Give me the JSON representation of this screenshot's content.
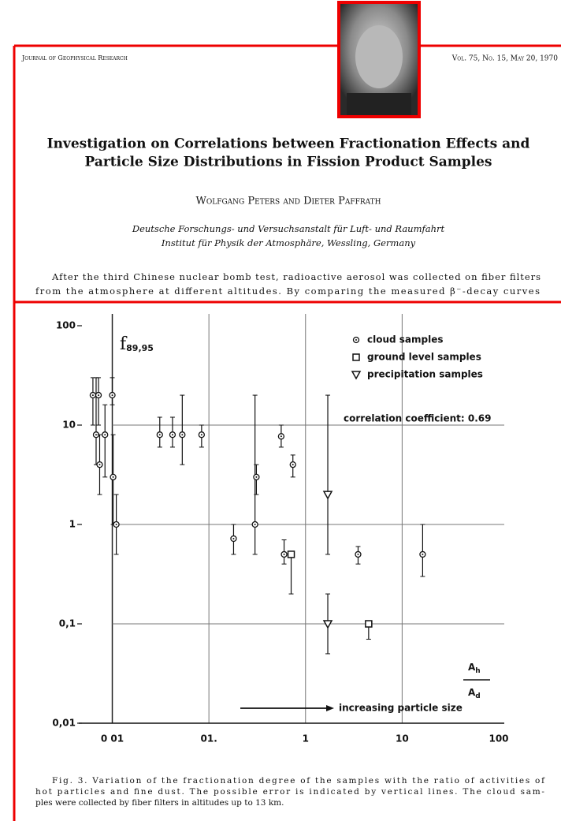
{
  "header": {
    "journal": "Journal of Geophysical Research",
    "issue": "Vol. 75, No. 15, May 20, 1970"
  },
  "title": [
    "Investigation on Correlations between Fractionation Effects and",
    "Particle Size Distributions in Fission Product Samples"
  ],
  "authors": "Wolfgang Peters and Dieter Paffrath",
  "affiliation": [
    "Deutsche Forschungs- und Versuchsanstalt für Luft- und Raumfahrt",
    "Institut für Physik der Atmosphäre, Wessling, Germany"
  ],
  "abstract": [
    "After the third Chinese nuclear bomb test, radioactive aerosol was collected on fiber filters",
    "from the atmosphere at different altitudes. By comparing the measured β⁻-decay curves"
  ],
  "chart_data": {
    "type": "scatter",
    "y_label": {
      "symbol": "f",
      "subscript": "89,95"
    },
    "x_label": {
      "numerator": "A",
      "numerator_sub": "h",
      "denominator": "A",
      "denominator_sub": "d"
    },
    "annotations": [
      "correlation coefficient: 0.69",
      "increasing particle size"
    ],
    "xlim": [
      0.0045,
      100
    ],
    "ylim": [
      0.01,
      100
    ],
    "xscale": "log",
    "yscale": "log",
    "grid": true,
    "xticks": [
      {
        "value": 0.01,
        "label": "0 01"
      },
      {
        "value": 0.1,
        "label": "01."
      },
      1,
      10,
      100
    ],
    "yticks": [
      100,
      10,
      1,
      {
        "value": 0.1,
        "label": "0,1"
      },
      {
        "value": 0.01,
        "label": "0,01"
      }
    ],
    "series": [
      {
        "name": "cloud samples",
        "marker": "circle",
        "color": "#111",
        "x": [
          0.0063,
          0.0068,
          0.0072,
          0.0074,
          0.0084,
          0.01,
          0.0102,
          0.011,
          0.031,
          0.042,
          0.053,
          0.084,
          0.18,
          0.3,
          0.31,
          0.56,
          0.6,
          0.74,
          3.5,
          16.3
        ],
        "values": [
          20,
          8,
          20,
          4,
          8,
          20,
          3,
          1,
          8,
          8,
          8,
          8,
          0.72,
          1,
          3,
          7.7,
          0.5,
          4,
          0.5,
          0.5
        ],
        "lower": [
          10,
          4,
          10,
          2,
          3,
          16,
          1,
          0.5,
          6,
          6,
          4,
          6,
          0.5,
          0.5,
          2,
          6,
          0.4,
          3,
          0.4,
          0.3
        ],
        "upper": [
          30,
          30,
          30,
          8,
          16,
          30,
          8,
          2,
          12,
          12,
          20,
          10,
          1,
          20,
          4,
          10,
          0.7,
          5,
          0.6,
          1
        ]
      },
      {
        "name": "ground level samples",
        "marker": "square",
        "color": "#111",
        "x": [
          0.71,
          4.5
        ],
        "values": [
          0.5,
          0.1
        ],
        "lower": [
          0.2,
          0.07
        ],
        "upper": [
          0.5,
          0.1
        ]
      },
      {
        "name": "precipitation samples",
        "marker": "triangle",
        "color": "#111",
        "x": [
          1.7,
          1.7
        ],
        "values": [
          2,
          0.1
        ],
        "lower": [
          0.5,
          0.05
        ],
        "upper": [
          20,
          0.2
        ]
      }
    ]
  },
  "caption": [
    "Fig. 3.  Variation of the fractionation degree of the samples with the ratio of activities of",
    "hot particles and fine dust. The possible error is indicated by vertical lines. The cloud sam-",
    "ples were collected by fiber filters in altitudes up to 13 km."
  ]
}
